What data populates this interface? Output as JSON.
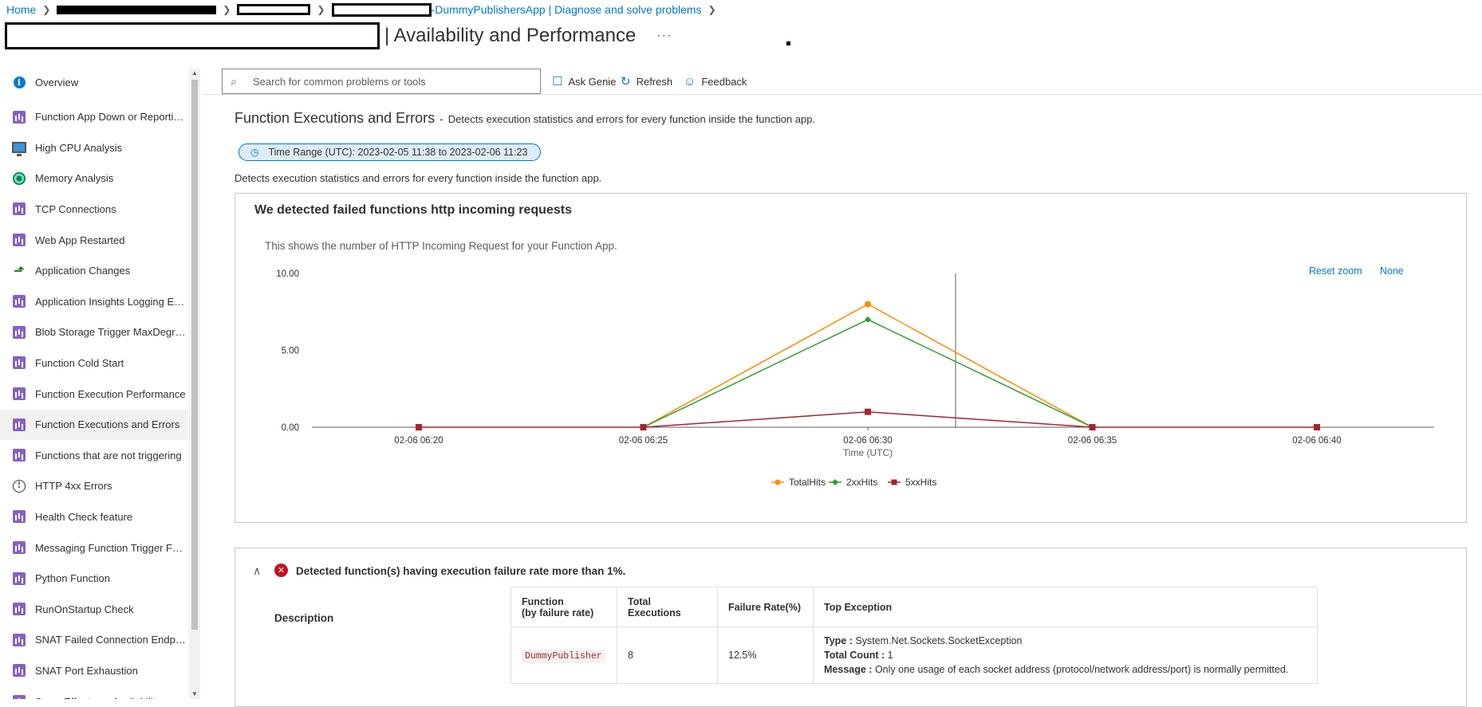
{
  "breadcrumb": {
    "home": "Home",
    "app_suffix": "-DummyPublishersApp | Diagnose and solve problems"
  },
  "title": "| Availability and Performance",
  "more_icon": "···",
  "sidebar": {
    "items": [
      {
        "label": "Overview",
        "icon": "info-icon"
      },
      {
        "label": "Function App Down or Reporting Errors",
        "icon": "bar-chart-icon"
      },
      {
        "label": "High CPU Analysis",
        "icon": "monitor-icon"
      },
      {
        "label": "Memory Analysis",
        "icon": "memory-icon"
      },
      {
        "label": "TCP Connections",
        "icon": "bar-chart-icon"
      },
      {
        "label": "Web App Restarted",
        "icon": "bar-chart-icon"
      },
      {
        "label": "Application Changes",
        "icon": "changes-icon"
      },
      {
        "label": "Application Insights Logging Enabled",
        "icon": "bar-chart-icon"
      },
      {
        "label": "Blob Storage Trigger MaxDegreeOfParallelism",
        "icon": "bar-chart-icon"
      },
      {
        "label": "Function Cold Start",
        "icon": "bar-chart-icon"
      },
      {
        "label": "Function Execution Performance",
        "icon": "bar-chart-icon"
      },
      {
        "label": "Function Executions and Errors",
        "icon": "bar-chart-icon"
      },
      {
        "label": "Functions that are not triggering",
        "icon": "bar-chart-icon"
      },
      {
        "label": "HTTP 4xx Errors",
        "icon": "circle-info-icon"
      },
      {
        "label": "Health Check feature",
        "icon": "bar-chart-icon"
      },
      {
        "label": "Messaging Function Trigger Failure",
        "icon": "bar-chart-icon"
      },
      {
        "label": "Python Function",
        "icon": "bar-chart-icon"
      },
      {
        "label": "RunOnStartup Check",
        "icon": "bar-chart-icon"
      },
      {
        "label": "SNAT Failed Connection Endpoints",
        "icon": "bar-chart-icon"
      },
      {
        "label": "SNAT Port Exhaustion",
        "icon": "bar-chart-icon"
      },
      {
        "label": "Swap Effects on Availability",
        "icon": "bar-chart-icon"
      }
    ],
    "active_index": 11
  },
  "toolbar": {
    "search_placeholder": "Search for common problems or tools",
    "ask_genie": "Ask Genie",
    "refresh": "Refresh",
    "feedback": "Feedback"
  },
  "main": {
    "section_title": "Function Executions and Errors",
    "section_dash": "-",
    "section_desc": "Detects execution statistics and errors for every function inside the function app.",
    "time_range": "Time Range (UTC): 2023-02-05 11:38 to 2023-02-06 11:23",
    "detector_desc": "Detects execution statistics and errors for every function inside the function app."
  },
  "chart_card": {
    "title": "We detected failed functions http incoming requests",
    "subtitle": "This shows the number of HTTP Incoming Request for your Function App.",
    "reset_zoom": "Reset zoom",
    "none": "None"
  },
  "chart_data": {
    "type": "line",
    "x": [
      "02-06 06:20",
      "02-06 06:25",
      "02-06 06:30",
      "02-06 06:35",
      "02-06 06:40"
    ],
    "x_tick_labels": [
      "02-06 06:20",
      "02-06 06:25",
      "02-06 06:30",
      "02-06 06:35",
      "02-06 06:40"
    ],
    "y_tick_labels": [
      "10.00",
      "5.00",
      "0.00"
    ],
    "xlabel": "Time (UTC)",
    "ylabel": "",
    "ylim": [
      0,
      10
    ],
    "series": [
      {
        "name": "TotalHits",
        "color": "#ff8c00",
        "marker": "circle",
        "values": [
          null,
          0,
          8,
          0,
          null
        ]
      },
      {
        "name": "2xxHits",
        "color": "#2ca02c",
        "marker": "diamond",
        "values": [
          null,
          0,
          7,
          0,
          null
        ]
      },
      {
        "name": "5xxHits",
        "color": "#a4262c",
        "marker": "square",
        "values": [
          0,
          0,
          1,
          0,
          0
        ]
      }
    ],
    "legend_position": "bottom-center",
    "grid": false
  },
  "insight": {
    "title": "Detected function(s) having execution failure rate more than 1%.",
    "description_label": "Description",
    "table": {
      "headers": {
        "function_line1": "Function",
        "function_line2": "(by failure rate)",
        "total_executions": "Total Executions",
        "failure_rate": "Failure Rate(%)",
        "top_exception": "Top Exception"
      },
      "rows": [
        {
          "function": "DummyPublisher",
          "total_executions": "8",
          "failure_rate": "12.5%",
          "type_label": "Type :",
          "type_value": "System.Net.Sockets.SocketException",
          "count_label": "Total Count :",
          "count_value": "1",
          "message_label": "Message :",
          "message_value": "Only one usage of each socket address (protocol/network address/port) is normally permitted."
        }
      ]
    }
  }
}
